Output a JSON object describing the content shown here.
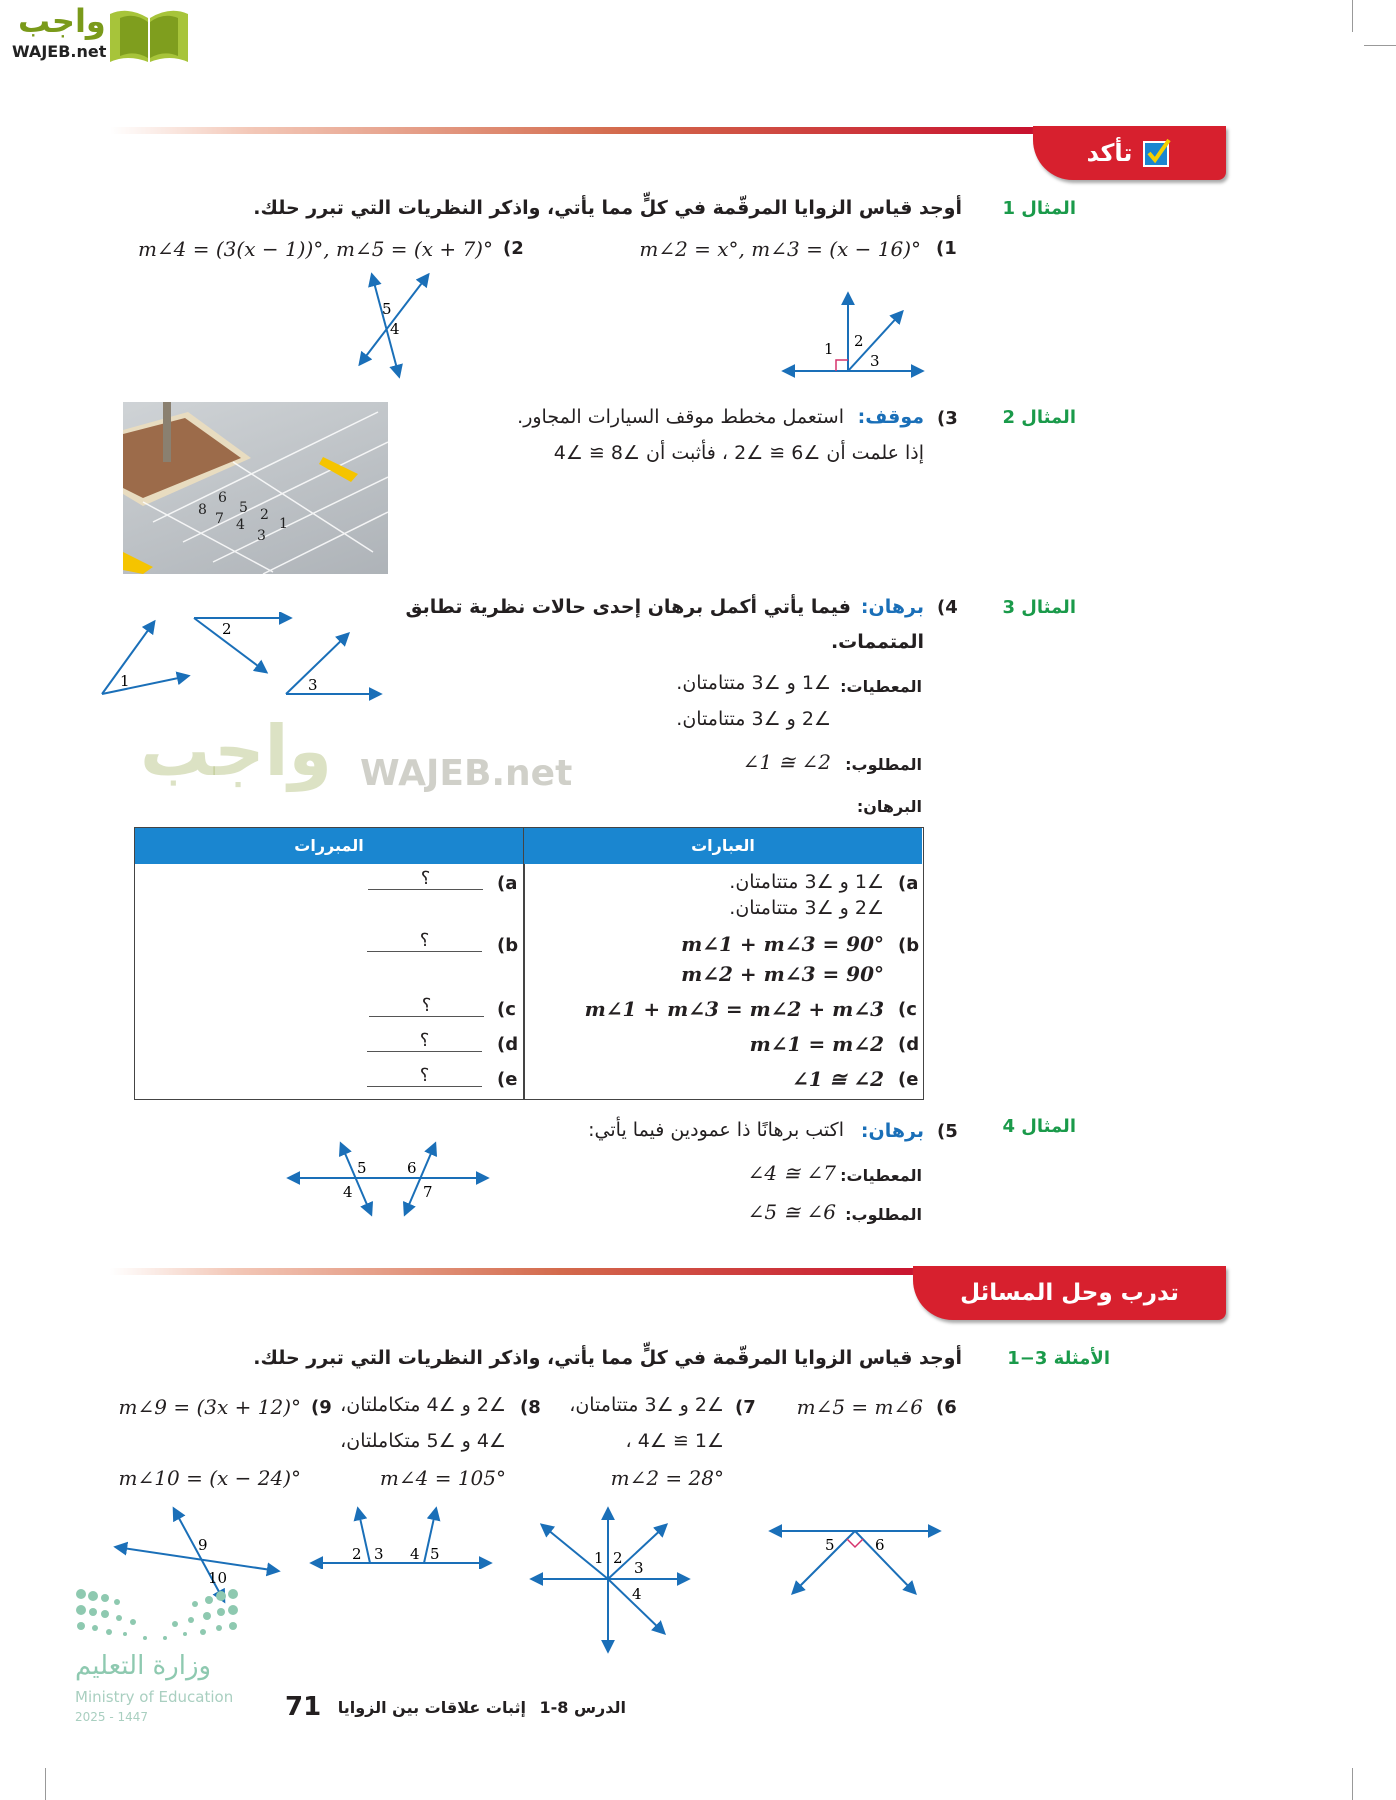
{
  "logo": {
    "arabic": "واجب",
    "latin": "WAJEB.net"
  },
  "section1": {
    "title": "تأكد"
  },
  "ex1": {
    "label": "المثال 1",
    "instruction": "أوجد قياس الزوايا المرقّمة في كلٍّ مما يأتي، واذكر النظريات التي تبرر حلك.",
    "q1_num": "(1",
    "q1": "m∠2 = x°, m∠3 = (x − 16)°",
    "q2_num": "(2",
    "q2": "m∠4 = (3(x − 1))°, m∠5 = (x + 7)°",
    "d1_labels": [
      "1",
      "2",
      "3"
    ],
    "d2_labels": [
      "5",
      "4"
    ]
  },
  "ex2": {
    "label": "المثال 2",
    "num": "(3",
    "keyword": "موقف:",
    "line1": "استعمل مخطط موقف السيارات المجاور.",
    "line2": "إذا علمت أن ∠6 ≅ ∠2 ، فأثبت أن ∠8 ≅ ∠4",
    "photo_labels": [
      "6",
      "8",
      "5",
      "2",
      "7",
      "4",
      "1",
      "3"
    ]
  },
  "ex3": {
    "label": "المثال 3",
    "num": "(4",
    "keyword": "برهان:",
    "line1": "فيما يأتي أكمل برهان إحدى حالات نظرية تطابق",
    "line2": "المتممات.",
    "given_label": "المعطيات:",
    "given1": "∠1 و ∠3 متتامتان.",
    "given2": "∠2 و ∠3 متتامتان.",
    "prove_label": "المطلوب:",
    "prove": "∠1 ≅ ∠2",
    "proof_label": "البرهان:",
    "d_labels": [
      "1",
      "2",
      "3"
    ],
    "table": {
      "col_statements": "العبارات",
      "col_reasons": "المبررات",
      "rows": [
        {
          "letter": "(a",
          "s1": "∠1 و ∠3 متتامتان.",
          "s2": "∠2 و ∠3 متتامتان.",
          "reason": "؟"
        },
        {
          "letter": "(b",
          "s1": "m∠1 + m∠3 = 90°",
          "s2": "m∠2 + m∠3 = 90°",
          "reason": "؟"
        },
        {
          "letter": "(c",
          "s1": "m∠1 + m∠3 = m∠2 + m∠3",
          "reason": "؟"
        },
        {
          "letter": "(d",
          "s1": "m∠1 = m∠2",
          "reason": "؟"
        },
        {
          "letter": "(e",
          "s1": "∠1 ≅ ∠2",
          "reason": "؟"
        }
      ]
    }
  },
  "ex4": {
    "label": "المثال 4",
    "num": "(5",
    "keyword": "برهان:",
    "line1": "اكتب برهانًا ذا عمودين فيما يأتي:",
    "given_label": "المعطيات:",
    "given": "∠4 ≅ ∠7",
    "prove_label": "المطلوب:",
    "prove": "∠5 ≅ ∠6",
    "d_labels": [
      "5",
      "6",
      "4",
      "7"
    ]
  },
  "section2": {
    "title": "تدرب وحل المسائل"
  },
  "practice": {
    "label": "الأمثلة 3−1",
    "instruction": "أوجد قياس الزوايا المرقّمة في كلٍّ مما يأتي، واذكر النظريات التي تبرر حلك.",
    "p6": {
      "num": "(6",
      "l1": "m∠5 = m∠6"
    },
    "p7": {
      "num": "(7",
      "l1": "∠2 و ∠3 متتامتان،",
      "l2": "∠1 ≅ ∠4 ،",
      "l3": "m∠2 = 28°"
    },
    "p8": {
      "num": "(8",
      "l1": "∠2 و ∠4 متكاملتان،",
      "l2": "∠4 و ∠5 متكاملتان،",
      "l3": "m∠4 = 105°"
    },
    "p9": {
      "num": "(9",
      "l1": "m∠9 = (3x + 12)°",
      "l3": "m∠10 = (x − 24)°"
    },
    "d9": [
      "9",
      "10"
    ],
    "d8": [
      "2",
      "3",
      "4",
      "5"
    ],
    "d7": [
      "1",
      "2",
      "3",
      "4"
    ],
    "d6": [
      "5",
      "6"
    ]
  },
  "ministry": {
    "arabic": "وزارة التعليم",
    "english": "Ministry of Education",
    "year": "2025 - 1447"
  },
  "footer": {
    "page": "71",
    "lesson": "الدرس 8-1",
    "title": "إثبات علاقات بين الزوايا"
  },
  "colors": {
    "accent_red": "#d7202e",
    "label_green": "#1a9a4a",
    "diagram_blue": "#1a6fb8",
    "table_header": "#1a86d0"
  }
}
